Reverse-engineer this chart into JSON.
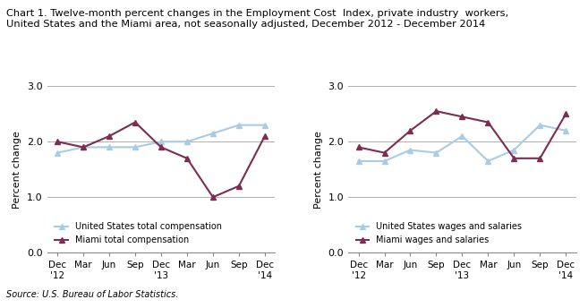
{
  "title": "Chart 1. Twelve-month percent changes in the Employment Cost  Index, private industry  workers,\nUnited States and the Miami area, not seasonally adjusted, December 2012 - December 2014",
  "xlabel": "",
  "ylabel": "Percent change",
  "source": "Source: U.S. Bureau of Labor Statistics.",
  "x_labels": [
    "Dec\n'12",
    "Mar",
    "Jun",
    "Sep",
    "Dec\n'13",
    "Mar",
    "Jun",
    "Sep",
    "Dec\n'14"
  ],
  "chart1": {
    "us_total": [
      1.8,
      1.9,
      1.9,
      1.9,
      2.0,
      2.0,
      2.15,
      2.3,
      2.3
    ],
    "miami_total": [
      2.0,
      1.9,
      2.1,
      2.35,
      1.9,
      1.7,
      1.0,
      1.2,
      2.1
    ],
    "legend1": "United States total compensation",
    "legend2": "Miami total compensation"
  },
  "chart2": {
    "us_wages": [
      1.65,
      1.65,
      1.85,
      1.8,
      2.1,
      1.65,
      1.85,
      2.3,
      2.2
    ],
    "miami_wages": [
      1.9,
      1.8,
      2.2,
      2.55,
      2.45,
      2.35,
      1.7,
      1.7,
      2.5
    ],
    "legend1": "United States wages and salaries",
    "legend2": "Miami wages and salaries"
  },
  "us_color": "#a8cce4",
  "miami_color": "#7b2d52",
  "ylim": [
    0.0,
    3.0
  ],
  "yticks": [
    0.0,
    1.0,
    2.0,
    3.0
  ],
  "figsize": [
    6.57,
    3.44
  ],
  "dpi": 100
}
